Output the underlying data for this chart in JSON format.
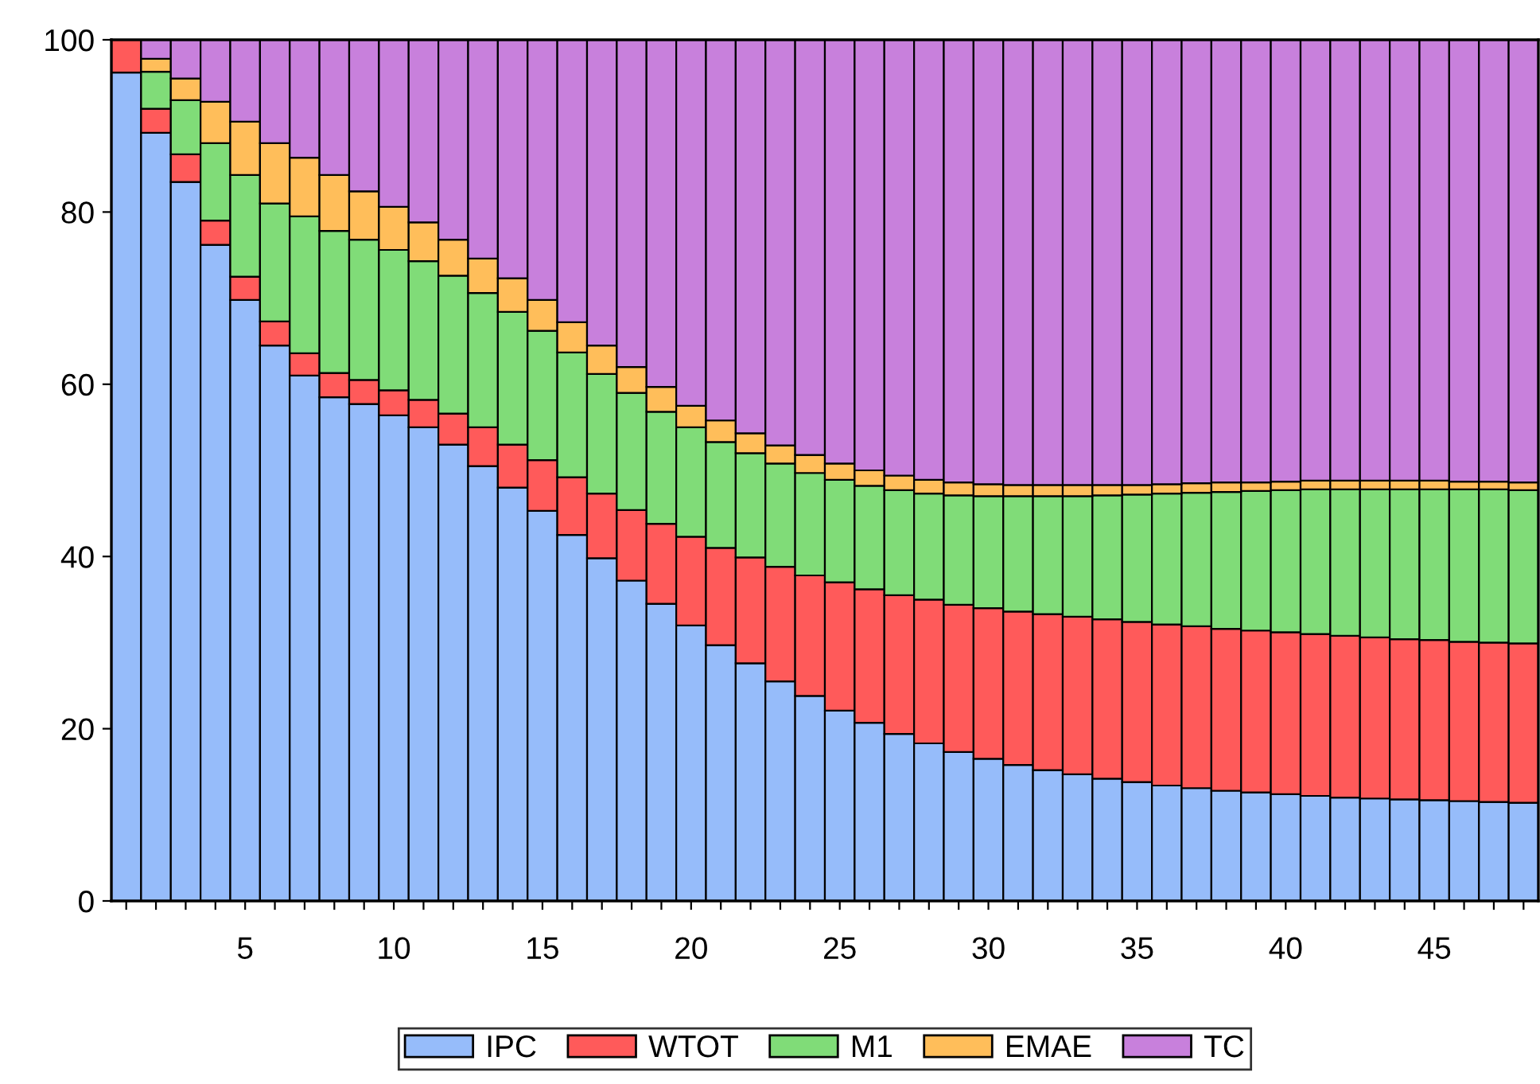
{
  "chart_data": {
    "type": "bar",
    "stacked": true,
    "categories": [
      null,
      null,
      null,
      null,
      "5",
      null,
      null,
      null,
      null,
      "10",
      null,
      null,
      null,
      null,
      "15",
      null,
      null,
      null,
      null,
      "20",
      null,
      null,
      null,
      null,
      "25",
      null,
      null,
      null,
      null,
      "30",
      null,
      null,
      null,
      null,
      "35",
      null,
      null,
      null,
      null,
      "40",
      null,
      null,
      null,
      null,
      "45",
      null,
      null,
      null
    ],
    "ylim": [
      0,
      100
    ],
    "yticks": [
      0,
      20,
      40,
      60,
      80,
      100
    ],
    "grid": false,
    "legend": "bottom",
    "series": [
      {
        "name": "IPC",
        "color": "#96bcfa",
        "values": [
          96.2,
          89.2,
          83.5,
          76.2,
          69.8,
          64.5,
          61.0,
          58.5,
          57.7,
          56.4,
          55.0,
          53.0,
          50.5,
          48.0,
          45.3,
          42.5,
          39.8,
          37.2,
          34.5,
          32.0,
          29.7,
          27.6,
          25.5,
          23.8,
          22.1,
          20.7,
          19.4,
          18.3,
          17.3,
          16.5,
          15.8,
          15.2,
          14.7,
          14.2,
          13.8,
          13.4,
          13.1,
          12.8,
          12.6,
          12.4,
          12.2,
          12.0,
          11.9,
          11.8,
          11.7,
          11.6,
          11.5,
          11.4
        ]
      },
      {
        "name": "WTOT",
        "color": "#ff5a5a",
        "values": [
          3.8,
          2.8,
          3.2,
          2.8,
          2.7,
          2.8,
          2.6,
          2.8,
          2.8,
          2.9,
          3.2,
          3.6,
          4.5,
          5.0,
          5.9,
          6.7,
          7.5,
          8.2,
          9.3,
          10.3,
          11.3,
          12.3,
          13.3,
          14.0,
          14.9,
          15.5,
          16.1,
          16.7,
          17.1,
          17.5,
          17.8,
          18.1,
          18.3,
          18.5,
          18.6,
          18.7,
          18.8,
          18.8,
          18.8,
          18.8,
          18.8,
          18.8,
          18.7,
          18.6,
          18.6,
          18.5,
          18.5,
          18.5
        ]
      },
      {
        "name": "M1",
        "color": "#80dc78",
        "values": [
          0,
          4.3,
          6.3,
          9.0,
          11.8,
          13.7,
          15.9,
          16.5,
          16.3,
          16.3,
          16.1,
          16.0,
          15.6,
          15.4,
          15.0,
          14.5,
          13.9,
          13.6,
          13.0,
          12.7,
          12.3,
          12.1,
          12.0,
          11.9,
          11.9,
          12.0,
          12.2,
          12.3,
          12.7,
          13.0,
          13.4,
          13.7,
          14.0,
          14.4,
          14.8,
          15.2,
          15.5,
          15.9,
          16.2,
          16.5,
          16.8,
          17.0,
          17.2,
          17.4,
          17.5,
          17.7,
          17.8,
          17.8
        ]
      },
      {
        "name": "EMAE",
        "color": "#ffbe5a",
        "values": [
          0,
          1.5,
          2.5,
          4.8,
          6.2,
          7.0,
          6.8,
          6.5,
          5.6,
          5.0,
          4.5,
          4.2,
          4.0,
          3.9,
          3.6,
          3.5,
          3.3,
          3.0,
          2.9,
          2.5,
          2.5,
          2.3,
          2.1,
          2.1,
          1.9,
          1.8,
          1.7,
          1.6,
          1.5,
          1.4,
          1.3,
          1.3,
          1.3,
          1.2,
          1.1,
          1.1,
          1.1,
          1.1,
          1.0,
          1.0,
          1.0,
          1.0,
          1.0,
          1.0,
          1.0,
          0.9,
          0.9,
          0.9
        ]
      },
      {
        "name": "TC",
        "color": "#c880dc",
        "values": [
          0,
          2.2,
          4.5,
          7.2,
          9.5,
          12.0,
          13.7,
          15.7,
          17.6,
          19.4,
          21.2,
          23.2,
          25.4,
          27.7,
          30.2,
          32.8,
          35.5,
          38.0,
          40.3,
          42.5,
          44.2,
          45.7,
          47.1,
          48.2,
          49.2,
          50.0,
          50.6,
          51.1,
          51.4,
          51.6,
          51.7,
          51.7,
          51.7,
          51.7,
          51.7,
          51.6,
          51.5,
          51.4,
          51.4,
          51.3,
          51.2,
          51.2,
          51.2,
          51.2,
          51.2,
          51.3,
          51.3,
          51.4
        ]
      }
    ]
  }
}
